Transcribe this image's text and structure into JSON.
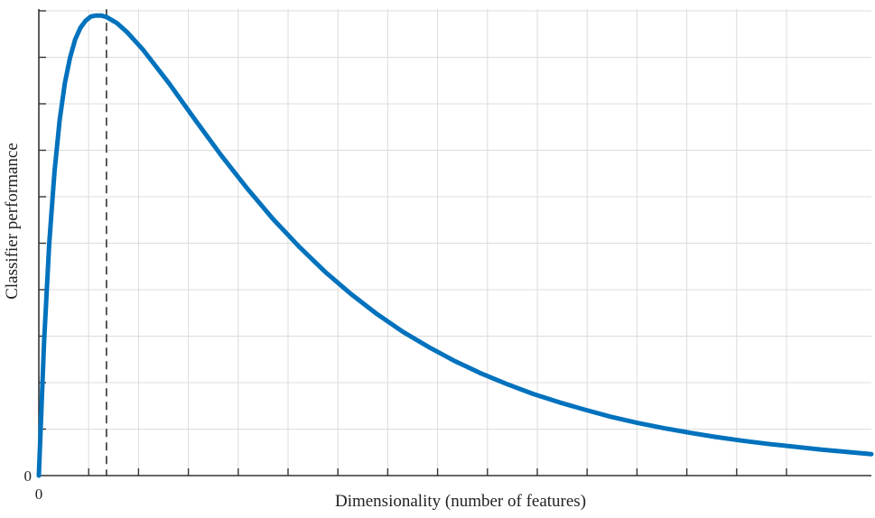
{
  "chart_data": {
    "type": "line",
    "xlabel": "Dimensionality (number of features)",
    "ylabel": "Classifier performance",
    "x_tick_labels": [
      "0"
    ],
    "y_tick_labels": [
      "0"
    ],
    "xlim": [
      0,
      16
    ],
    "ylim": [
      0,
      10
    ],
    "grid": true,
    "optimum_marker": {
      "style": "dashed-vertical-line",
      "x": 1.3
    },
    "series": [
      {
        "color": "#0072BD",
        "x": [
          0,
          0.1,
          0.2,
          0.3,
          0.4,
          0.5,
          0.6,
          0.7,
          0.8,
          0.9,
          1.0,
          1.1,
          1.2,
          1.3,
          1.5,
          1.7,
          2.0,
          2.5,
          3.0,
          3.5,
          4.0,
          4.5,
          5.0,
          5.5,
          6.0,
          6.5,
          7.0,
          7.5,
          8.0,
          8.5,
          9.0,
          9.5,
          10.0,
          10.5,
          11.0,
          11.5,
          12.0,
          12.5,
          13.0,
          13.5,
          14.0,
          14.5,
          15.0,
          15.5,
          16.0
        ],
        "y": [
          0,
          2.86,
          4.97,
          6.5,
          7.61,
          8.41,
          8.96,
          9.35,
          9.6,
          9.75,
          9.84,
          9.86,
          9.86,
          9.83,
          9.7,
          9.5,
          9.13,
          8.41,
          7.63,
          6.87,
          6.16,
          5.5,
          4.91,
          4.37,
          3.89,
          3.46,
          3.08,
          2.75,
          2.45,
          2.19,
          1.96,
          1.75,
          1.57,
          1.41,
          1.26,
          1.13,
          1.02,
          0.92,
          0.83,
          0.75,
          0.68,
          0.62,
          0.56,
          0.51,
          0.46
        ]
      }
    ]
  }
}
